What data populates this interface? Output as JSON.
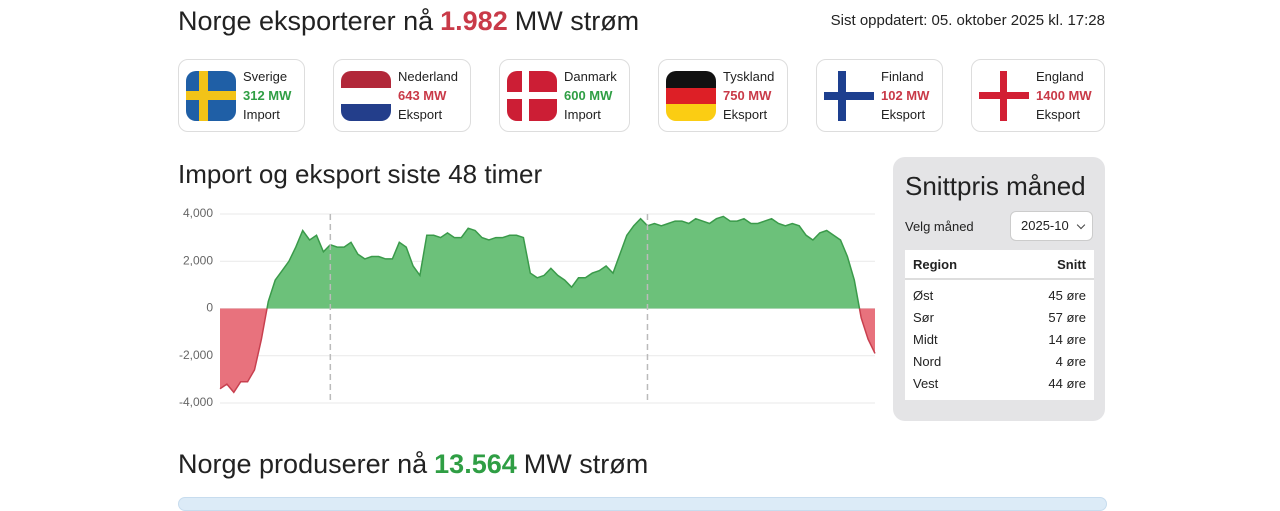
{
  "header": {
    "title_before": "Norge eksporterer nå",
    "title_amount": "1.982",
    "title_after": "MW strøm",
    "updated": "Sist oppdatert: 05. oktober 2025 kl. 17:28"
  },
  "countries": [
    {
      "name": "Sverige",
      "amount": "312 MW",
      "direction": "Import"
    },
    {
      "name": "Nederland",
      "amount": "643 MW",
      "direction": "Eksport"
    },
    {
      "name": "Danmark",
      "amount": "600 MW",
      "direction": "Import"
    },
    {
      "name": "Tyskland",
      "amount": "750 MW",
      "direction": "Eksport"
    },
    {
      "name": "Finland",
      "amount": "102 MW",
      "direction": "Eksport"
    },
    {
      "name": "England",
      "amount": "1400 MW",
      "direction": "Eksport"
    }
  ],
  "chart_data": {
    "type": "area",
    "title": "Import og eksport siste 48 timer",
    "categories": [
      null,
      null,
      null,
      null,
      null,
      null,
      null,
      null,
      null,
      null,
      null,
      null,
      null,
      null,
      null,
      null,
      null,
      null,
      null,
      null,
      null,
      null,
      null,
      null,
      null,
      null,
      null,
      null,
      null,
      null,
      null,
      null,
      null,
      null,
      null,
      null,
      null,
      null,
      null,
      null,
      null,
      null,
      null,
      null,
      null,
      null,
      null,
      null,
      null,
      null,
      null,
      null,
      null,
      null,
      null,
      null,
      null,
      null,
      null,
      null,
      null,
      null,
      null,
      null,
      null,
      null,
      null,
      null,
      null,
      null,
      null,
      null,
      null,
      null,
      null,
      null,
      null,
      null,
      null,
      null,
      null,
      null,
      null,
      null,
      null,
      null,
      null,
      null,
      null,
      null,
      null,
      null,
      null,
      null,
      null,
      null
    ],
    "values": [
      -3400,
      -3200,
      -3550,
      -3100,
      -3100,
      -2600,
      -1300,
      300,
      1200,
      1600,
      2000,
      2600,
      3300,
      2900,
      3100,
      2400,
      2700,
      2600,
      2600,
      2800,
      2300,
      2100,
      2200,
      2200,
      2100,
      2100,
      2800,
      2600,
      1800,
      1400,
      3100,
      3100,
      3000,
      3200,
      3000,
      3000,
      3400,
      3300,
      3000,
      2900,
      3000,
      3000,
      3100,
      3100,
      3000,
      1500,
      1300,
      1400,
      1700,
      1400,
      1200,
      900,
      1300,
      1300,
      1500,
      1600,
      1800,
      1500,
      2300,
      3100,
      3500,
      3800,
      3500,
      3600,
      3500,
      3600,
      3700,
      3700,
      3600,
      3800,
      3700,
      3600,
      3800,
      3900,
      3700,
      3700,
      3800,
      3600,
      3600,
      3700,
      3800,
      3600,
      3500,
      3600,
      3500,
      3100,
      2900,
      3200,
      3300,
      3100,
      2900,
      2200,
      1200,
      -400,
      -1300,
      -1900
    ],
    "color": "#6cc17a",
    "negative_color": "#e8727d",
    "line_color": "#3a9a4a",
    "negative_line_color": "#c8404f",
    "ylim": [
      -4000,
      4000
    ],
    "yticks": [
      {
        "value": 4000,
        "label": "4,000"
      },
      {
        "value": 2000,
        "label": "2,000"
      },
      0,
      {
        "value": -2000,
        "label": "-2,000"
      },
      {
        "value": -4000,
        "label": "-4,000"
      }
    ],
    "x_markers": [
      16,
      62
    ],
    "grid": true
  },
  "panel": {
    "title": "Snittpris måned",
    "select_label": "Velg måned",
    "select_value": "2025-10",
    "columns": [
      "Region",
      "Snitt"
    ],
    "rows": [
      [
        "Øst",
        "45 øre"
      ],
      [
        "Sør",
        "57 øre"
      ],
      [
        "Midt",
        "14 øre"
      ],
      [
        "Nord",
        "4 øre"
      ],
      [
        "Vest",
        "44 øre"
      ]
    ]
  },
  "production": {
    "title_before": "Norge produserer nå",
    "title_amount": "13.564",
    "title_after": "MW strøm"
  }
}
